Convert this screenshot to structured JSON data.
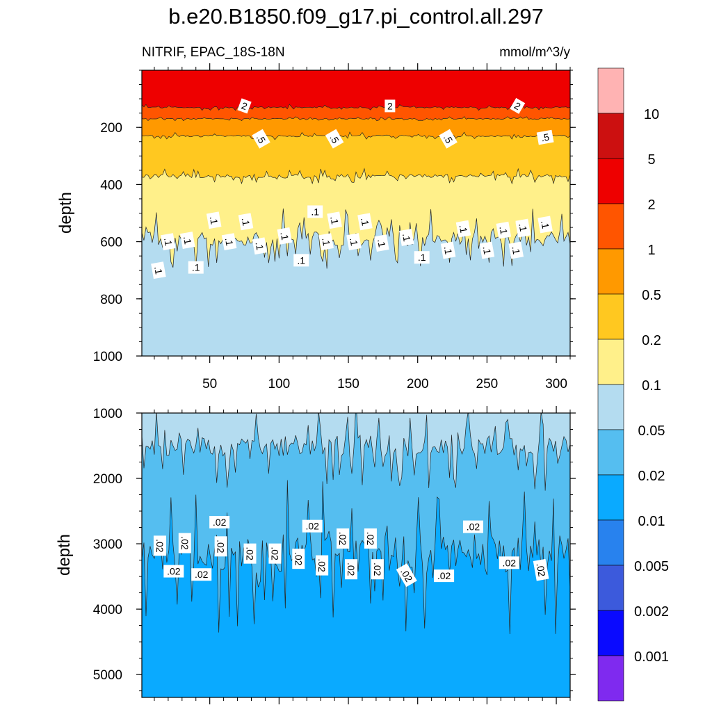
{
  "title": "b.e20.B1850.f09_g17.pi_control.all.297",
  "subtitle_left": "NITRIF, EPAC_18S-18N",
  "subtitle_right": "mmol/m^3/y",
  "chart_data": [
    {
      "type": "heatmap",
      "panel": "upper",
      "variable": "NITRIF",
      "region": "EPAC_18S-18N",
      "units": "mmol/m^3/y",
      "xlabel": "",
      "ylabel": "depth",
      "xlim": [
        1,
        310
      ],
      "ylim": [
        1000,
        0
      ],
      "x_ticks": [
        50,
        100,
        150,
        200,
        250,
        300
      ],
      "y_ticks": [
        200,
        400,
        600,
        800,
        1000
      ],
      "contour_bands": [
        {
          "from_depth": 0,
          "to_depth": 130,
          "range": "2-5"
        },
        {
          "from_depth": 130,
          "to_depth": 170,
          "range": "1-2"
        },
        {
          "from_depth": 170,
          "to_depth": 230,
          "range": "0.5-1"
        },
        {
          "from_depth": 230,
          "to_depth": 370,
          "range": "0.2-0.5"
        },
        {
          "from_depth": 370,
          "to_depth": 590,
          "range": "0.1-0.2"
        },
        {
          "from_depth": 590,
          "to_depth": 1000,
          "range": "0.05-0.1"
        }
      ],
      "contour_labels": [
        "2",
        ".5",
        ".1"
      ]
    },
    {
      "type": "heatmap",
      "panel": "lower",
      "variable": "NITRIF",
      "region": "EPAC_18S-18N",
      "units": "mmol/m^3/y",
      "xlabel": "",
      "ylabel": "depth",
      "xlim": [
        1,
        310
      ],
      "ylim": [
        5350,
        1000
      ],
      "x_ticks": [
        50,
        100,
        150,
        200,
        250,
        300
      ],
      "y_ticks": [
        1000,
        2000,
        3000,
        4000,
        5000
      ],
      "contour_bands": [
        {
          "from_depth": 1000,
          "to_depth": 1500,
          "range": "0.05-0.1"
        },
        {
          "from_depth": 1500,
          "to_depth": 3150,
          "range": "0.02-0.05"
        },
        {
          "from_depth": 3150,
          "to_depth": 5350,
          "range": "0.01-0.02"
        }
      ],
      "contour_labels": [
        ".02"
      ]
    }
  ],
  "colorbar": {
    "levels": [
      "10",
      "5",
      "2",
      "1",
      "0.5",
      "0.2",
      "0.1",
      "0.05",
      "0.02",
      "0.01",
      "0.005",
      "0.002",
      "0.001"
    ],
    "colors": [
      "#FFB3B3",
      "#CC1010",
      "#EE0000",
      "#FF5500",
      "#FF9900",
      "#FFC820",
      "#FFF08A",
      "#B4DCF0",
      "#55BEF0",
      "#0AAAFF",
      "#2882EE",
      "#3C5ADC",
      "#0A0AFF",
      "#7F2AEF"
    ]
  }
}
